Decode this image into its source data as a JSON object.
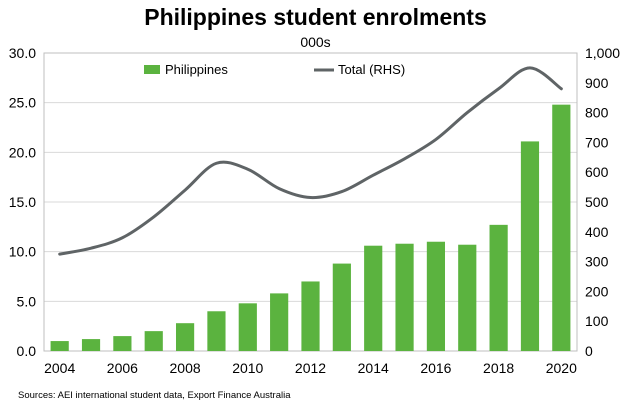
{
  "chart_data": {
    "type": "bar",
    "title": "Philippines student enrolments",
    "subtitle": "000s",
    "x": [
      2004,
      2005,
      2006,
      2007,
      2008,
      2009,
      2010,
      2011,
      2012,
      2013,
      2014,
      2015,
      2016,
      2017,
      2018,
      2019,
      2020
    ],
    "x_tick_labels": [
      "2004",
      "2006",
      "2008",
      "2010",
      "2012",
      "2014",
      "2016",
      "2018",
      "2020"
    ],
    "y_left": {
      "lim": [
        0,
        30
      ],
      "ticks": [
        "0.0",
        "5.0",
        "10.0",
        "15.0",
        "20.0",
        "25.0",
        "30.0"
      ]
    },
    "y_right": {
      "lim": [
        0,
        1000
      ],
      "ticks": [
        "0",
        "100",
        "200",
        "300",
        "400",
        "500",
        "600",
        "700",
        "800",
        "900",
        "1,000"
      ]
    },
    "series": [
      {
        "name": "Philippines",
        "type": "bar",
        "axis": "left",
        "color": "#5bb33f",
        "values": [
          1.0,
          1.2,
          1.5,
          2.0,
          2.8,
          4.0,
          4.8,
          5.8,
          7.0,
          8.8,
          10.6,
          10.8,
          11.0,
          10.7,
          12.7,
          21.1,
          24.8
        ]
      },
      {
        "name": "Total (RHS)",
        "type": "line",
        "axis": "right",
        "color": "#5f6466",
        "values": [
          325,
          345,
          380,
          450,
          540,
          630,
          610,
          545,
          515,
          535,
          590,
          645,
          710,
          800,
          880,
          950,
          880
        ]
      }
    ],
    "legend": {
      "placement": "top"
    },
    "grid": "horizontal"
  },
  "source_note": "Sources: AEI international student data, Export Finance Australia"
}
